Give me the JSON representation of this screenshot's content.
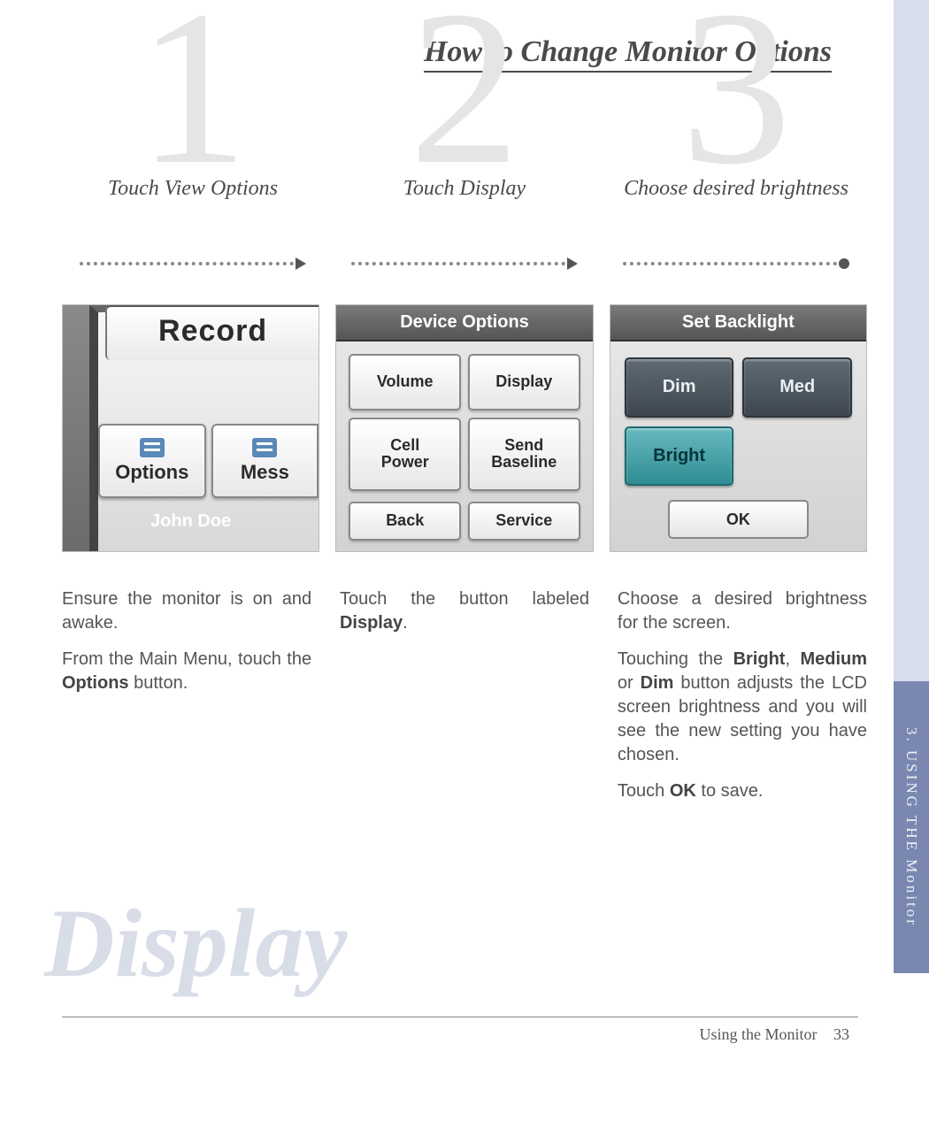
{
  "title": "How to Change Monitor Options",
  "watermark": "Display",
  "side_tab": "3. USING THE Monitor",
  "footer": {
    "section": "Using the Monitor",
    "page": "33"
  },
  "steps": [
    {
      "num": "1",
      "caption": "Touch View Options",
      "end": "arrow"
    },
    {
      "num": "2",
      "caption": "Touch Display",
      "end": "arrow"
    },
    {
      "num": "3",
      "caption": "Choose desired brightness",
      "end": "dot"
    }
  ],
  "shot1": {
    "record": "Record",
    "btn_options": "Options",
    "btn_mess": "Mess",
    "name": "John Doe"
  },
  "shot2": {
    "header": "Device Options",
    "buttons": [
      "Volume",
      "Display",
      "Cell Power",
      "Send Baseline"
    ],
    "footer": [
      "Back",
      "Service"
    ]
  },
  "shot3": {
    "header": "Set Backlight",
    "dim": "Dim",
    "med": "Med",
    "bright": "Bright",
    "ok": "OK"
  },
  "body": {
    "c1p1": "Ensure the monitor is on and awake.",
    "c1p2a": "From the Main Menu, touch the ",
    "c1p2b": "Options",
    "c1p2c": " button.",
    "c2a": "Touch the button labeled ",
    "c2b": "Display",
    "c2c": ".",
    "c3p1": "Choose a desired brightness for the screen.",
    "c3p2a": "Touching the ",
    "c3p2b": "Bright",
    "c3p2c": ", ",
    "c3p2d": "Medium",
    "c3p2e": " or ",
    "c3p2f": "Dim",
    "c3p2g": " button adjusts the LCD screen brightness and you will see the new setting you have chosen.",
    "c3p3a": "Touch ",
    "c3p3b": "OK",
    "c3p3c": " to save."
  }
}
